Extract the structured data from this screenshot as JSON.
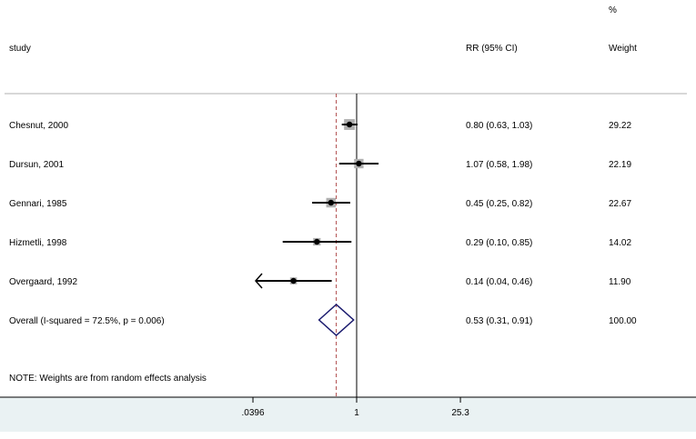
{
  "chart_data": {
    "type": "forest",
    "x_scale": "log",
    "reference_line": 1,
    "xticks": [
      ".0396",
      "1",
      "25.3"
    ],
    "xtick_values": [
      0.0396,
      1,
      25.3
    ],
    "headers": {
      "study": "study",
      "effect": "RR (95% CI)",
      "weight_top": "%",
      "weight": "Weight"
    },
    "studies": [
      {
        "label": "Chesnut, 2000",
        "rr": 0.8,
        "lo": 0.63,
        "hi": 1.03,
        "text": "0.80 (0.63, 1.03)",
        "weight": "29.22"
      },
      {
        "label": "Dursun, 2001",
        "rr": 1.07,
        "lo": 0.58,
        "hi": 1.98,
        "text": "1.07 (0.58, 1.98)",
        "weight": "22.19"
      },
      {
        "label": "Gennari, 1985",
        "rr": 0.45,
        "lo": 0.25,
        "hi": 0.82,
        "text": "0.45 (0.25, 0.82)",
        "weight": "22.67"
      },
      {
        "label": "Hizmetli, 1998",
        "rr": 0.29,
        "lo": 0.1,
        "hi": 0.85,
        "text": "0.29 (0.10, 0.85)",
        "weight": "14.02"
      },
      {
        "label": "Overgaard, 1992",
        "rr": 0.14,
        "lo": 0.04,
        "hi": 0.46,
        "text": "0.14 (0.04, 0.46)",
        "weight": "11.90"
      }
    ],
    "overall": {
      "label": "Overall  (I-squared = 72.5%, p = 0.006)",
      "rr": 0.53,
      "lo": 0.31,
      "hi": 0.91,
      "text": "0.53 (0.31, 0.91)",
      "weight": "100.00"
    },
    "note": "NOTE: Weights are from random effects analysis",
    "colors": {
      "diamond": "#1a1a6e",
      "overall_line": "#b04a4a",
      "box": "#b0b0b0",
      "axis_band": "#eaf2f3"
    }
  }
}
